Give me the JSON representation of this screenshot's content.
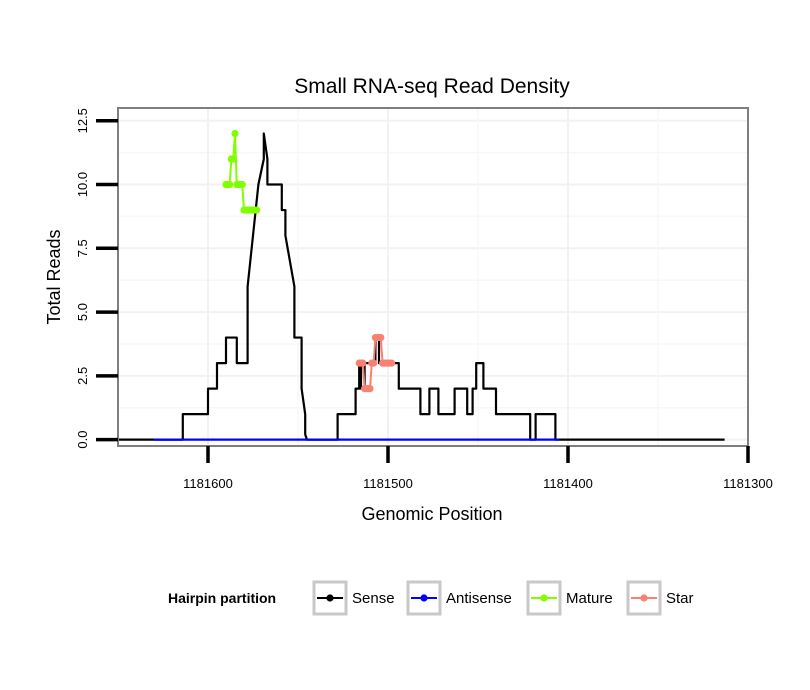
{
  "chart_data": {
    "type": "line",
    "title": "Small RNA-seq Read Density",
    "xlabel": "Genomic Position",
    "ylabel": "Total Reads",
    "xlim": [
      1181650,
      1181300
    ],
    "ylim": [
      -0.25,
      13
    ],
    "x_reversed": true,
    "grid": true,
    "x_ticks": [
      1181600,
      1181500,
      1181400,
      1181300
    ],
    "x_tick_labels": [
      "1181600",
      "1181500",
      "1181400",
      "1181300"
    ],
    "y_ticks": [
      0,
      2.5,
      5,
      7.5,
      10,
      12.5
    ],
    "y_tick_labels": [
      "0.0",
      "2.5",
      "5.0",
      "7.5",
      "10.0",
      "12.5"
    ],
    "legend": {
      "title": "Hairpin partition",
      "placement": "bottom",
      "entries": [
        {
          "name": "Sense",
          "color": "#000000"
        },
        {
          "name": "Antisense",
          "color": "#0000ff"
        },
        {
          "name": "Mature",
          "color": "#7fff00"
        },
        {
          "name": "Star",
          "color": "#fa8072"
        }
      ]
    },
    "series": [
      {
        "name": "Sense",
        "color": "#000000",
        "x": [
          1181650,
          1181614,
          1181614,
          1181600,
          1181600,
          1181595,
          1181595,
          1181590,
          1181590,
          1181584,
          1181584,
          1181578,
          1181578,
          1181572,
          1181572,
          1181569,
          1181569,
          1181567,
          1181567,
          1181559,
          1181559,
          1181557,
          1181557,
          1181552,
          1181552,
          1181548,
          1181548,
          1181546,
          1181546,
          1181545,
          1181545,
          1181544,
          1181544,
          1181542,
          1181542,
          1181537,
          1181537,
          1181528,
          1181528,
          1181518,
          1181518,
          1181516,
          1181516,
          1181515,
          1181515,
          1181513,
          1181513,
          1181507,
          1181507,
          1181505,
          1181505,
          1181494,
          1181494,
          1181482,
          1181482,
          1181477,
          1181477,
          1181472,
          1181472,
          1181463,
          1181463,
          1181456,
          1181456,
          1181453,
          1181453,
          1181451,
          1181451,
          1181447,
          1181447,
          1181440,
          1181440,
          1181421,
          1181421,
          1181418,
          1181418,
          1181407,
          1181407,
          1181405,
          1181405,
          1181388,
          1181388,
          1181313
        ],
        "y": [
          0,
          0,
          1,
          1,
          2,
          2,
          3,
          3,
          4,
          4,
          3,
          3,
          6,
          10,
          10,
          11,
          12,
          11,
          10,
          10,
          9,
          9,
          8,
          6,
          4,
          4,
          2,
          1,
          0.2,
          0,
          0,
          0,
          0,
          0,
          0,
          0,
          0,
          0,
          1,
          1,
          2,
          2,
          3,
          3,
          2,
          2,
          3,
          3,
          4,
          4,
          3,
          3,
          2,
          2,
          1,
          1,
          2,
          2,
          1,
          1,
          2,
          2,
          1,
          1,
          2,
          2,
          3,
          3,
          2,
          2,
          1,
          1,
          0,
          0,
          1,
          1,
          0,
          0,
          0,
          0,
          0,
          0
        ]
      },
      {
        "name": "Antisense",
        "color": "#0000ff",
        "x": [
          1181630,
          1181405
        ],
        "y": [
          0,
          0
        ]
      },
      {
        "name": "Mature",
        "color": "#7fff00",
        "x": [
          1181590,
          1181589,
          1181588,
          1181587,
          1181586,
          1181585,
          1181584,
          1181583,
          1181582,
          1181581,
          1181580,
          1181579,
          1181578,
          1181577,
          1181576,
          1181575,
          1181574,
          1181573
        ],
        "y": [
          10,
          10,
          10,
          11,
          11,
          12,
          10,
          10,
          10,
          10,
          9,
          9,
          9,
          9,
          9,
          9,
          9,
          9
        ]
      },
      {
        "name": "Star",
        "color": "#fa8072",
        "x": [
          1181516,
          1181515,
          1181514,
          1181513,
          1181512,
          1181511,
          1181510,
          1181509,
          1181508,
          1181507,
          1181506,
          1181505,
          1181504,
          1181503,
          1181502,
          1181501,
          1181500,
          1181499,
          1181498
        ],
        "y": [
          3,
          3,
          3,
          2,
          2,
          2,
          2,
          3,
          3,
          4,
          4,
          4,
          4,
          3,
          3,
          3,
          3,
          3,
          3
        ]
      }
    ]
  }
}
